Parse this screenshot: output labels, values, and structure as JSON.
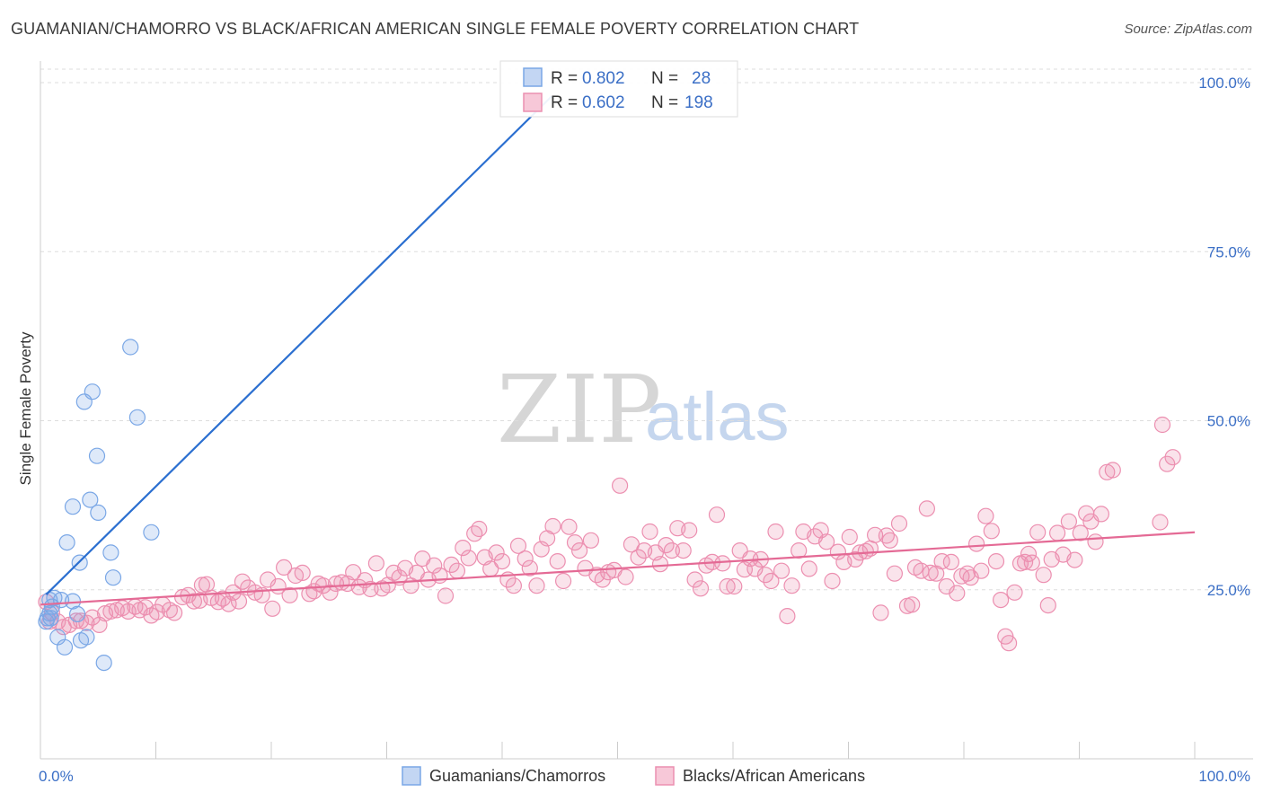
{
  "title": "GUAMANIAN/CHAMORRO VS BLACK/AFRICAN AMERICAN SINGLE FEMALE POVERTY CORRELATION CHART",
  "source": "Source: ZipAtlas.com",
  "watermark": {
    "zip": "ZIP",
    "atlas": "atlas"
  },
  "colors": {
    "blue": "#7aa7e6",
    "blue_fill": "rgba(122,167,230,0.25)",
    "blue_line": "#2b6fd0",
    "pink": "#ec8fb0",
    "pink_fill": "rgba(236,143,176,0.25)",
    "pink_line": "#e46a95",
    "accent_text": "#3b6fc6",
    "grid": "#dddddd"
  },
  "legend": {
    "series1": {
      "r_label": "R =",
      "r_value": "0.802",
      "n_label": "N =",
      "n_value": "28"
    },
    "series2": {
      "r_label": "R =",
      "r_value": "0.602",
      "n_label": "N =",
      "n_value": "198"
    }
  },
  "bottom_legend": {
    "series1": "Guamanians/Chamorros",
    "series2": "Blacks/African Americans"
  },
  "chart_data": {
    "type": "scatter",
    "title": "GUAMANIAN/CHAMORRO VS BLACK/AFRICAN AMERICAN SINGLE FEMALE POVERTY CORRELATION CHART",
    "xlabel": "",
    "ylabel": "Single Female Poverty",
    "xlim": [
      0,
      100
    ],
    "ylim": [
      0,
      102
    ],
    "x_tick_labels": [
      "0.0%",
      "100.0%"
    ],
    "y_ticks": [
      25,
      50,
      75,
      100
    ],
    "y_tick_labels": [
      "25.0%",
      "50.0%",
      "75.0%",
      "100.0%"
    ],
    "grid": true,
    "series": [
      {
        "name": "Guamanians/Chamorros",
        "R": 0.802,
        "N": 28,
        "trend": {
          "x": [
            0.5,
            44.3
          ],
          "y": [
            24.3,
            98
          ]
        },
        "points": [
          [
            0.5,
            20.3
          ],
          [
            0.6,
            20.8
          ],
          [
            0.8,
            21.5
          ],
          [
            0.8,
            23.5
          ],
          [
            0.9,
            20.8
          ],
          [
            1.0,
            22.5
          ],
          [
            1.2,
            23.8
          ],
          [
            1.5,
            18.0
          ],
          [
            1.8,
            23.5
          ],
          [
            2.1,
            16.5
          ],
          [
            2.3,
            32.0
          ],
          [
            2.8,
            23.3
          ],
          [
            2.8,
            37.3
          ],
          [
            3.2,
            21.4
          ],
          [
            3.4,
            29.0
          ],
          [
            3.5,
            17.5
          ],
          [
            3.8,
            52.8
          ],
          [
            4.0,
            18.0
          ],
          [
            4.3,
            38.3
          ],
          [
            4.5,
            54.3
          ],
          [
            4.9,
            44.8
          ],
          [
            5.0,
            36.4
          ],
          [
            5.5,
            14.2
          ],
          [
            6.1,
            30.5
          ],
          [
            6.3,
            26.8
          ],
          [
            7.8,
            60.9
          ],
          [
            8.4,
            50.5
          ],
          [
            9.6,
            33.5
          ]
        ]
      },
      {
        "name": "Blacks/African Americans",
        "R": 0.602,
        "N": 198,
        "trend": {
          "x": [
            0,
            100
          ],
          "y": [
            22.8,
            33.5
          ]
        },
        "points": [
          [
            0.5,
            23.2
          ],
          [
            0.8,
            20.3
          ],
          [
            1.0,
            21.6
          ],
          [
            1.5,
            20.3
          ],
          [
            2.0,
            19.5
          ],
          [
            2.5,
            19.8
          ],
          [
            3.1,
            20.4
          ],
          [
            3.5,
            20.4
          ],
          [
            4.0,
            20.1
          ],
          [
            4.5,
            20.9
          ],
          [
            5.1,
            19.8
          ],
          [
            5.6,
            21.5
          ],
          [
            6.1,
            21.8
          ],
          [
            6.6,
            22.0
          ],
          [
            7.1,
            22.3
          ],
          [
            7.6,
            21.8
          ],
          [
            8.2,
            22.5
          ],
          [
            8.6,
            22.0
          ],
          [
            9.1,
            22.4
          ],
          [
            9.6,
            21.2
          ],
          [
            10.1,
            21.7
          ],
          [
            10.6,
            22.8
          ],
          [
            11.2,
            22.0
          ],
          [
            11.6,
            21.6
          ],
          [
            12.3,
            23.9
          ],
          [
            12.8,
            24.2
          ],
          [
            13.3,
            23.3
          ],
          [
            13.8,
            23.4
          ],
          [
            14.0,
            25.7
          ],
          [
            14.4,
            25.8
          ],
          [
            14.8,
            23.8
          ],
          [
            15.4,
            23.2
          ],
          [
            15.8,
            23.7
          ],
          [
            16.3,
            22.9
          ],
          [
            16.7,
            24.6
          ],
          [
            17.2,
            23.3
          ],
          [
            17.5,
            26.2
          ],
          [
            18.0,
            25.3
          ],
          [
            18.6,
            24.6
          ],
          [
            19.2,
            24.2
          ],
          [
            19.7,
            26.5
          ],
          [
            20.1,
            22.2
          ],
          [
            20.6,
            25.5
          ],
          [
            21.1,
            28.3
          ],
          [
            21.6,
            24.2
          ],
          [
            22.1,
            27.1
          ],
          [
            22.7,
            27.5
          ],
          [
            23.3,
            24.4
          ],
          [
            23.7,
            24.8
          ],
          [
            24.1,
            25.9
          ],
          [
            24.5,
            25.6
          ],
          [
            25.1,
            24.6
          ],
          [
            25.6,
            25.9
          ],
          [
            26.1,
            26.1
          ],
          [
            26.6,
            25.9
          ],
          [
            27.1,
            27.6
          ],
          [
            27.6,
            25.4
          ],
          [
            28.1,
            26.4
          ],
          [
            28.6,
            25.1
          ],
          [
            29.1,
            28.9
          ],
          [
            29.6,
            25.2
          ],
          [
            30.1,
            25.7
          ],
          [
            30.6,
            27.5
          ],
          [
            31.1,
            26.8
          ],
          [
            31.6,
            28.2
          ],
          [
            32.1,
            25.6
          ],
          [
            32.6,
            27.5
          ],
          [
            33.1,
            29.6
          ],
          [
            33.6,
            26.5
          ],
          [
            34.1,
            28.6
          ],
          [
            34.6,
            27.1
          ],
          [
            35.1,
            24.1
          ],
          [
            35.6,
            28.7
          ],
          [
            36.1,
            27.8
          ],
          [
            36.6,
            31.2
          ],
          [
            37.1,
            29.7
          ],
          [
            37.6,
            33.3
          ],
          [
            38.0,
            34.0
          ],
          [
            38.5,
            29.8
          ],
          [
            39.0,
            28.1
          ],
          [
            39.5,
            30.5
          ],
          [
            40.0,
            29.2
          ],
          [
            40.5,
            26.5
          ],
          [
            41.0,
            25.6
          ],
          [
            41.4,
            31.5
          ],
          [
            42.0,
            29.6
          ],
          [
            42.4,
            28.2
          ],
          [
            43.0,
            25.6
          ],
          [
            43.4,
            31.0
          ],
          [
            43.9,
            32.6
          ],
          [
            44.4,
            34.4
          ],
          [
            44.8,
            29.2
          ],
          [
            45.3,
            26.3
          ],
          [
            45.8,
            34.3
          ],
          [
            46.3,
            32.0
          ],
          [
            46.7,
            30.8
          ],
          [
            47.2,
            28.2
          ],
          [
            47.7,
            32.3
          ],
          [
            48.2,
            27.2
          ],
          [
            48.7,
            26.5
          ],
          [
            49.2,
            27.6
          ],
          [
            49.7,
            27.9
          ],
          [
            50.2,
            40.4
          ],
          [
            50.7,
            26.9
          ],
          [
            51.2,
            31.7
          ],
          [
            51.8,
            29.8
          ],
          [
            52.3,
            30.8
          ],
          [
            52.8,
            33.6
          ],
          [
            53.3,
            30.5
          ],
          [
            53.7,
            28.8
          ],
          [
            54.2,
            31.6
          ],
          [
            54.7,
            30.8
          ],
          [
            55.2,
            34.1
          ],
          [
            55.7,
            30.8
          ],
          [
            56.2,
            33.8
          ],
          [
            56.7,
            26.5
          ],
          [
            57.2,
            25.2
          ],
          [
            57.7,
            28.6
          ],
          [
            58.2,
            29.1
          ],
          [
            58.6,
            36.1
          ],
          [
            59.1,
            28.9
          ],
          [
            59.5,
            25.5
          ],
          [
            60.1,
            25.5
          ],
          [
            60.6,
            30.8
          ],
          [
            61.0,
            28.0
          ],
          [
            61.5,
            29.6
          ],
          [
            61.9,
            28.1
          ],
          [
            62.4,
            29.5
          ],
          [
            62.8,
            27.2
          ],
          [
            63.3,
            26.3
          ],
          [
            63.7,
            33.6
          ],
          [
            64.2,
            27.8
          ],
          [
            64.7,
            21.1
          ],
          [
            65.1,
            25.6
          ],
          [
            65.7,
            30.8
          ],
          [
            66.1,
            33.6
          ],
          [
            66.6,
            28.1
          ],
          [
            67.1,
            32.9
          ],
          [
            67.6,
            33.8
          ],
          [
            68.1,
            32.1
          ],
          [
            68.6,
            26.3
          ],
          [
            69.1,
            30.6
          ],
          [
            69.6,
            29.1
          ],
          [
            70.1,
            32.8
          ],
          [
            70.6,
            29.5
          ],
          [
            71.0,
            30.5
          ],
          [
            71.5,
            30.7
          ],
          [
            71.9,
            31.1
          ],
          [
            72.3,
            33.1
          ],
          [
            72.8,
            21.6
          ],
          [
            73.3,
            33.0
          ],
          [
            73.6,
            32.3
          ],
          [
            74.0,
            27.4
          ],
          [
            74.4,
            34.8
          ],
          [
            75.1,
            22.6
          ],
          [
            75.5,
            22.8
          ],
          [
            75.8,
            28.3
          ],
          [
            76.3,
            27.8
          ],
          [
            76.8,
            37.0
          ],
          [
            77.1,
            27.5
          ],
          [
            77.6,
            27.4
          ],
          [
            78.1,
            29.2
          ],
          [
            78.5,
            25.5
          ],
          [
            78.9,
            29.1
          ],
          [
            79.4,
            24.5
          ],
          [
            79.8,
            27.0
          ],
          [
            80.3,
            27.4
          ],
          [
            80.6,
            26.8
          ],
          [
            81.1,
            31.8
          ],
          [
            81.5,
            27.8
          ],
          [
            81.9,
            35.9
          ],
          [
            82.4,
            33.7
          ],
          [
            82.8,
            29.2
          ],
          [
            83.2,
            23.5
          ],
          [
            83.6,
            18.1
          ],
          [
            83.9,
            17.1
          ],
          [
            84.4,
            24.6
          ],
          [
            84.9,
            28.9
          ],
          [
            85.3,
            29.1
          ],
          [
            85.6,
            30.3
          ],
          [
            85.9,
            29.0
          ],
          [
            86.4,
            33.5
          ],
          [
            86.9,
            27.2
          ],
          [
            87.3,
            22.7
          ],
          [
            87.6,
            29.5
          ],
          [
            88.1,
            33.4
          ],
          [
            88.6,
            30.2
          ],
          [
            89.1,
            35.1
          ],
          [
            89.6,
            29.4
          ],
          [
            90.1,
            33.4
          ],
          [
            90.6,
            36.3
          ],
          [
            91.0,
            35.1
          ],
          [
            91.4,
            32.1
          ],
          [
            91.9,
            36.2
          ],
          [
            92.4,
            42.4
          ],
          [
            92.9,
            42.7
          ],
          [
            97.2,
            49.4
          ],
          [
            97.6,
            43.6
          ],
          [
            98.1,
            44.6
          ],
          [
            97.0,
            35.0
          ]
        ]
      }
    ]
  }
}
